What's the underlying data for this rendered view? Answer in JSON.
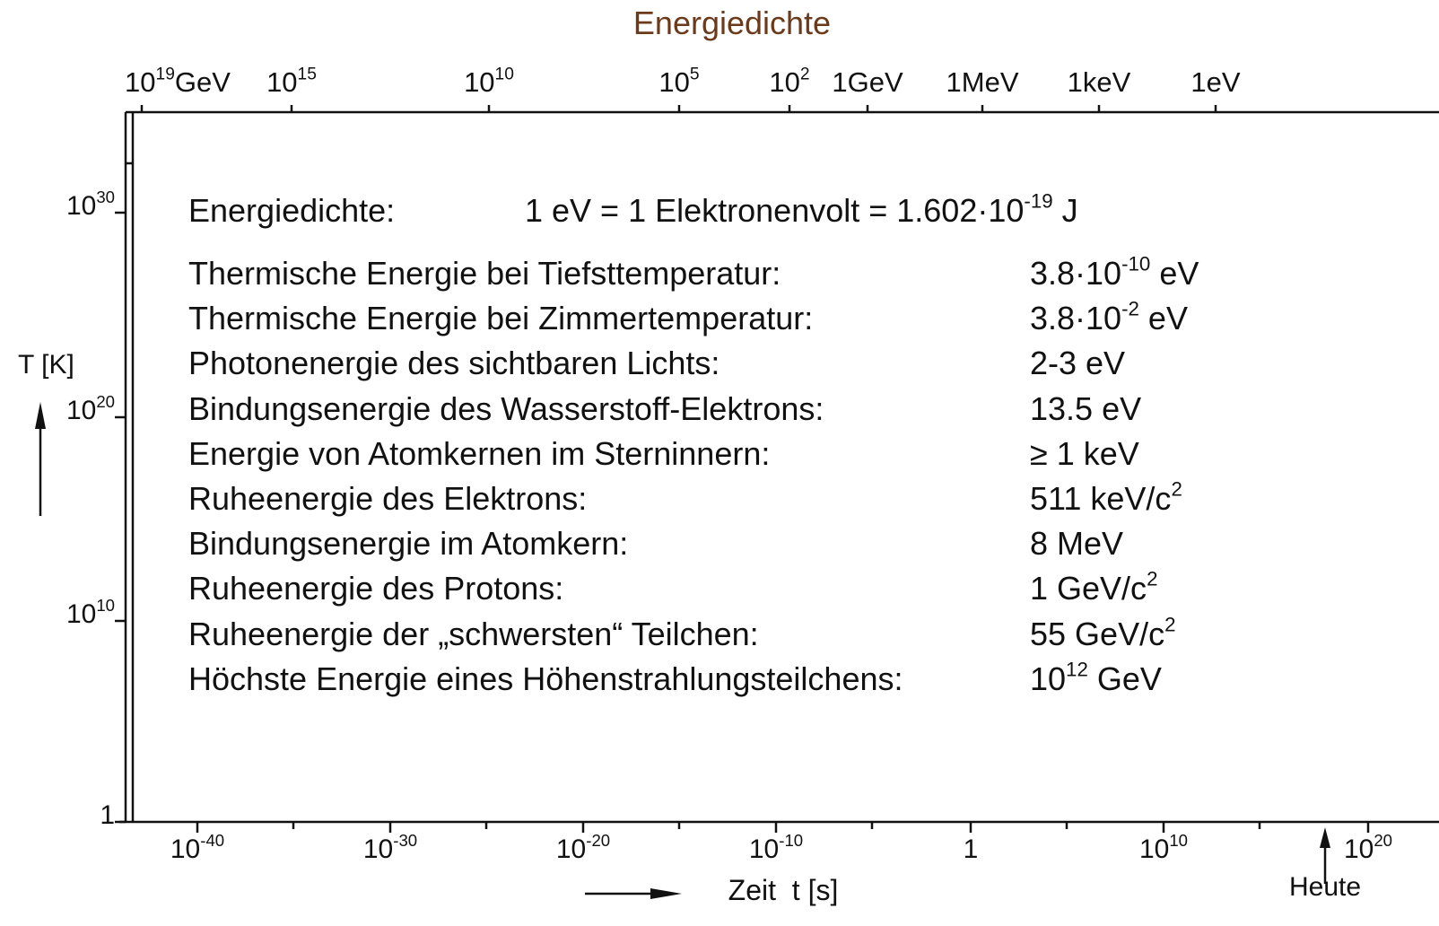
{
  "title": "Energiedichte",
  "top_axis": {
    "ticks": [
      {
        "base": "10",
        "exp": "19",
        "unit": "GeV"
      },
      {
        "base": "10",
        "exp": "15"
      },
      {
        "base": "10",
        "exp": "10"
      },
      {
        "base": "10",
        "exp": "5"
      },
      {
        "base": "10",
        "exp": "2"
      },
      {
        "base": "1GeV"
      },
      {
        "base": "1MeV"
      },
      {
        "base": "1keV"
      },
      {
        "base": "1eV"
      }
    ]
  },
  "left_axis": {
    "label": "T [K]",
    "ticks": [
      {
        "base": "10",
        "exp": "30"
      },
      {
        "base": "10",
        "exp": "20"
      },
      {
        "base": "10",
        "exp": "10"
      },
      {
        "base": "1"
      }
    ]
  },
  "bottom_axis": {
    "label": "Zeit  t [s]",
    "ticks": [
      {
        "base": "10",
        "exp": "-40"
      },
      {
        "base": "10",
        "exp": "-30"
      },
      {
        "base": "10",
        "exp": "-20"
      },
      {
        "base": "10",
        "exp": "-10"
      },
      {
        "base": "1"
      },
      {
        "base": "10",
        "exp": "10"
      },
      {
        "base": "10",
        "exp": "20"
      }
    ],
    "marker": "Heute"
  },
  "box": {
    "heading": {
      "label": "Energiedichte:",
      "text": "1 eV = 1 Elektronenvolt = 1.602·10",
      "sup": "-19",
      "after": " J"
    },
    "rows": [
      {
        "label": "Thermische Energie bei Tiefsttemperatur:",
        "value": {
          "text": "3.8·10",
          "sup": "-10",
          "after": " eV"
        }
      },
      {
        "label": "Thermische Energie bei Zimmertemperatur:",
        "value": {
          "text": "3.8·10",
          "sup": "-2",
          "after": " eV"
        }
      },
      {
        "label": "Photonenergie des sichtbaren Lichts:",
        "value": {
          "text": "2-3 eV"
        }
      },
      {
        "label": "Bindungsenergie des Wasserstoff-Elektrons:",
        "value": {
          "text": "13.5 eV"
        }
      },
      {
        "label": "Energie von Atomkernen im Sterninnern:",
        "value": {
          "text": "≥ 1 keV"
        }
      },
      {
        "label": "Ruheenergie des Elektrons:",
        "value": {
          "text": "511 keV/c",
          "sup": "2"
        }
      },
      {
        "label": "Bindungsenergie im Atomkern:",
        "value": {
          "text": "8 MeV"
        }
      },
      {
        "label": "Ruheenergie des Protons:",
        "value": {
          "text": "1 GeV/c",
          "sup": "2"
        }
      },
      {
        "label": "Ruheenergie der „schwersten“ Teilchen:",
        "value": {
          "text": "55 GeV/c",
          "sup": "2"
        }
      },
      {
        "label": "Höchste Energie eines Höhenstrahlungsteilchens:",
        "value": {
          "text": "10",
          "sup": "12",
          "after": " GeV"
        }
      }
    ]
  }
}
